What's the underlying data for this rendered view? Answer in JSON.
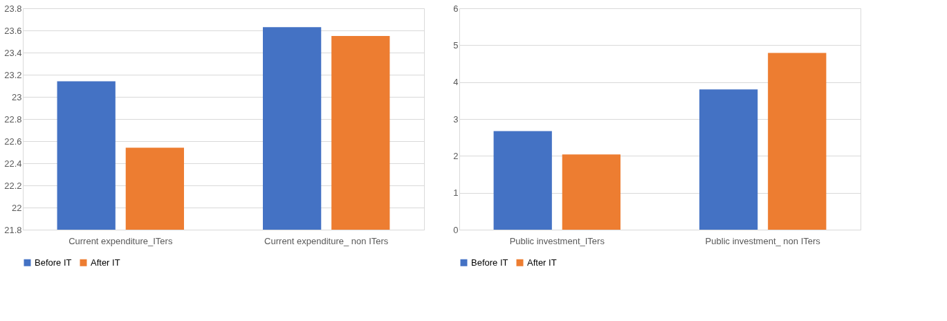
{
  "chart_data": [
    {
      "type": "bar",
      "categories": [
        "Current expenditure_ITers",
        "Current expenditure_ non ITers"
      ],
      "series": [
        {
          "name": "Before IT",
          "color": "#4472c4",
          "values": [
            23.14,
            23.63
          ]
        },
        {
          "name": "After IT",
          "color": "#ed7d31",
          "values": [
            22.54,
            23.55
          ]
        }
      ],
      "ylim": [
        21.8,
        23.8
      ],
      "yticks": [
        21.8,
        22,
        22.2,
        22.4,
        22.6,
        22.8,
        23,
        23.2,
        23.4,
        23.6,
        23.8
      ],
      "grid": "y",
      "legend": "bottom"
    },
    {
      "type": "bar",
      "categories": [
        "Public investment_ITers",
        "Public investment_ non ITers"
      ],
      "series": [
        {
          "name": "Before IT",
          "color": "#4472c4",
          "values": [
            2.67,
            3.8
          ]
        },
        {
          "name": "After IT",
          "color": "#ed7d31",
          "values": [
            2.04,
            4.79
          ]
        }
      ],
      "ylim": [
        0,
        6
      ],
      "yticks": [
        0,
        1,
        2,
        3,
        4,
        5,
        6
      ],
      "grid": "y",
      "legend": "bottom"
    }
  ]
}
